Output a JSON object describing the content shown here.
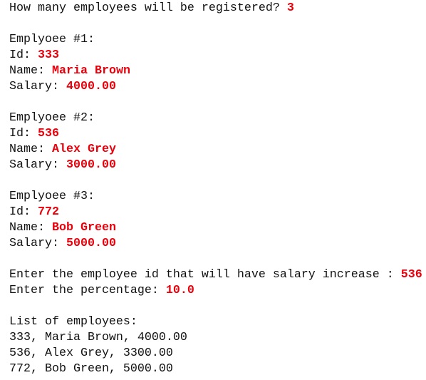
{
  "console": {
    "blocks": [
      [
        {
          "text": "How many employees will be registered? ",
          "input": "3"
        }
      ],
      [
        {
          "text": "Emplyoee #1:"
        },
        {
          "text": "Id: ",
          "input": "333"
        },
        {
          "text": "Name: ",
          "input": "Maria Brown"
        },
        {
          "text": "Salary: ",
          "input": "4000.00"
        }
      ],
      [
        {
          "text": "Emplyoee #2:"
        },
        {
          "text": "Id: ",
          "input": "536"
        },
        {
          "text": "Name: ",
          "input": "Alex Grey"
        },
        {
          "text": "Salary: ",
          "input": "3000.00"
        }
      ],
      [
        {
          "text": "Emplyoee #3:"
        },
        {
          "text": "Id: ",
          "input": "772"
        },
        {
          "text": "Name: ",
          "input": "Bob Green"
        },
        {
          "text": "Salary: ",
          "input": "5000.00"
        }
      ],
      [
        {
          "text": "Enter the employee id that will have salary increase : ",
          "input": "536"
        },
        {
          "text": "Enter the percentage: ",
          "input": "10.0"
        }
      ],
      [
        {
          "text": "List of employees:"
        },
        {
          "text": "333, Maria Brown, 4000.00"
        },
        {
          "text": "536, Alex Grey, 3300.00"
        },
        {
          "text": "772, Bob Green, 5000.00"
        }
      ]
    ]
  }
}
